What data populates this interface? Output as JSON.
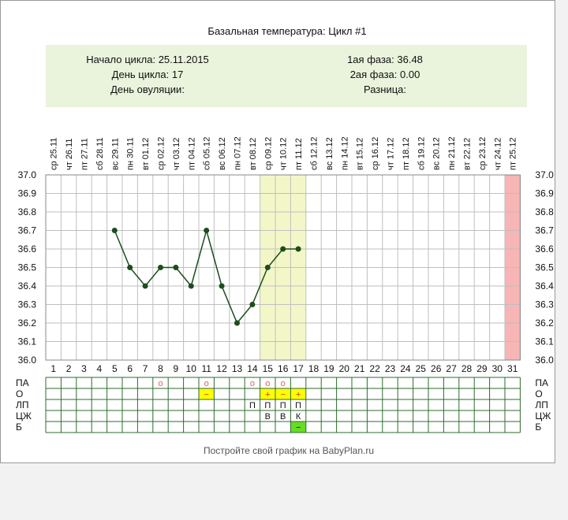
{
  "title": "Базальная температура: Цикл #1",
  "info": {
    "cycle_start_label": "Начало цикла: 25.11.2015",
    "cycle_day_label": "День цикла: 17",
    "ovulation_day_label": "День овуляции:",
    "phase1_label": "1ая фаза: 36.48",
    "phase2_label": "2ая фаза: 0.00",
    "difference_label": "Разница:"
  },
  "footer_text": "Постройте свой график на BabyPlan.ru",
  "colors": {
    "info_bg": "#eaf3dc",
    "line": "#1c4d1c",
    "highlight": "#f3f7c8",
    "today": "#f7b5b5",
    "grid": "#bfbfbf",
    "table_border": "#2e6b2e",
    "mark_yellow": "#ffff00",
    "mark_green": "#66dd22",
    "circle_mark": "#e06060",
    "plus_mark": "#d03030"
  },
  "chart_data": {
    "type": "line",
    "days": [
      1,
      2,
      3,
      4,
      5,
      6,
      7,
      8,
      9,
      10,
      11,
      12,
      13,
      14,
      15,
      16,
      17,
      18,
      19,
      20,
      21,
      22,
      23,
      24,
      25,
      26,
      27,
      28,
      29,
      30,
      31
    ],
    "dates": [
      "ср 25.11",
      "чт 26.11",
      "пт 27.11",
      "сб 28.11",
      "вс 29.11",
      "пн 30.11",
      "вт 01.12",
      "ср 02.12",
      "чт 03.12",
      "пт 04.12",
      "сб 05.12",
      "вс 06.12",
      "пн 07.12",
      "вт 08.12",
      "ср 09.12",
      "чт 10.12",
      "пт 11.12",
      "сб 12.12",
      "вс 13.12",
      "пн 14.12",
      "вт 15.12",
      "ср 16.12",
      "чт 17.12",
      "пт 18.12",
      "сб 19.12",
      "вс 20.12",
      "пн 21.12",
      "вт 22.12",
      "ср 23.12",
      "чт 24.12",
      "пт 25.12"
    ],
    "temperatures": [
      null,
      null,
      null,
      null,
      36.7,
      36.5,
      36.4,
      36.5,
      36.5,
      36.4,
      36.7,
      36.4,
      36.2,
      36.3,
      36.5,
      36.6,
      36.6,
      null,
      null,
      null,
      null,
      null,
      null,
      null,
      null,
      null,
      null,
      null,
      null,
      null,
      null
    ],
    "ylim": [
      36.0,
      37.0
    ],
    "yticks": [
      "37.0",
      "36.9",
      "36.8",
      "36.7",
      "36.6",
      "36.5",
      "36.4",
      "36.3",
      "36.2",
      "36.1",
      "36.0"
    ],
    "highlight_days": [
      15,
      16,
      17
    ],
    "today_day": 31,
    "grid": true,
    "row_labels": [
      "ПА",
      "О",
      "ЛП",
      "ЦЖ",
      "Б"
    ],
    "marks": [
      {
        "row": 0,
        "day": 8,
        "text": "о"
      },
      {
        "row": 0,
        "day": 11,
        "text": "о"
      },
      {
        "row": 0,
        "day": 14,
        "text": "о"
      },
      {
        "row": 0,
        "day": 15,
        "text": "о"
      },
      {
        "row": 0,
        "day": 16,
        "text": "о"
      },
      {
        "row": 1,
        "day": 11,
        "text": "−",
        "fill": "yellow"
      },
      {
        "row": 1,
        "day": 15,
        "text": "+",
        "fill": "yellow"
      },
      {
        "row": 1,
        "day": 16,
        "text": "−",
        "fill": "yellow"
      },
      {
        "row": 1,
        "day": 17,
        "text": "+",
        "fill": "yellow"
      },
      {
        "row": 2,
        "day": 14,
        "text": "П"
      },
      {
        "row": 2,
        "day": 15,
        "text": "П"
      },
      {
        "row": 2,
        "day": 16,
        "text": "П"
      },
      {
        "row": 2,
        "day": 17,
        "text": "П"
      },
      {
        "row": 3,
        "day": 15,
        "text": "В"
      },
      {
        "row": 3,
        "day": 16,
        "text": "В"
      },
      {
        "row": 3,
        "day": 17,
        "text": "К"
      },
      {
        "row": 4,
        "day": 17,
        "text": "−",
        "fill": "green"
      }
    ]
  }
}
